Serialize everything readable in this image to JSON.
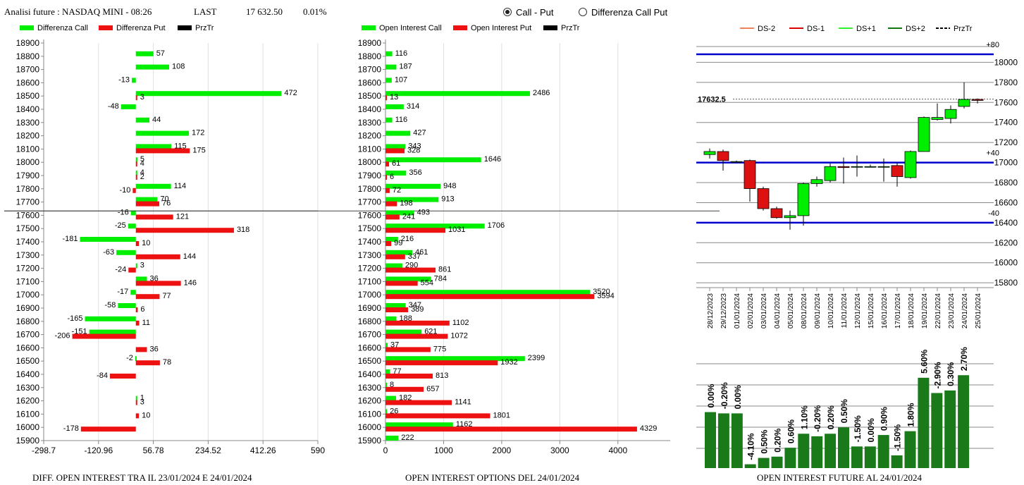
{
  "header": {
    "title": "Analisi future : NASDAQ MINI - 08:26",
    "last_label": "LAST",
    "last_value": "17 632.50",
    "change": "0.01%"
  },
  "mode_options": [
    {
      "label": "Call - Put",
      "selected": true
    },
    {
      "label": "Differenza Call Put",
      "selected": false
    }
  ],
  "colors": {
    "green": "#00ee00",
    "red": "#ee1111",
    "dark_green": "#1a7a1a",
    "blue": "#0000cc"
  },
  "chart_data": [
    {
      "type": "bar",
      "orientation": "horizontal",
      "title": "DIFF. OPEN INTEREST TRA IL 23/01/2024 E 24/01/2024",
      "legend": [
        "Differenza Call",
        "Differenza Put",
        "PrzTr"
      ],
      "categories": [
        "18900",
        "18800",
        "18700",
        "18600",
        "18500",
        "18400",
        "18300",
        "18200",
        "18100",
        "18000",
        "17900",
        "17800",
        "17700",
        "17600",
        "17500",
        "17400",
        "17300",
        "17200",
        "17100",
        "17000",
        "16900",
        "16800",
        "16700",
        "16600",
        "16500",
        "16400",
        "16300",
        "16200",
        "16100",
        "16000",
        "15900"
      ],
      "series": [
        {
          "name": "Differenza Call",
          "values": [
            null,
            57,
            108,
            -13,
            472,
            -48,
            44,
            172,
            115,
            5,
            4,
            114,
            70,
            -16,
            -25,
            -181,
            -63,
            3,
            36,
            -17,
            -58,
            -165,
            -151,
            null,
            -2,
            null,
            null,
            1,
            null,
            null,
            null
          ]
        },
        {
          "name": "Differenza Put",
          "values": [
            null,
            null,
            null,
            null,
            3,
            null,
            null,
            null,
            175,
            4,
            2,
            -10,
            76,
            121,
            318,
            10,
            144,
            -24,
            146,
            77,
            6,
            11,
            -206,
            36,
            78,
            -84,
            null,
            3,
            10,
            -178,
            null
          ]
        }
      ],
      "x_ticks": [
        "-298.7",
        "-120.96",
        "56.78",
        "234.52",
        "412.26",
        "590"
      ],
      "xlim": [
        -298.7,
        590
      ],
      "price_line": 17632.5
    },
    {
      "type": "bar",
      "orientation": "horizontal",
      "title": "OPEN INTEREST OPTIONS DEL 24/01/2024",
      "legend": [
        "Open Interest Call",
        "Open Interest Put",
        "PrzTr"
      ],
      "categories": [
        "18900",
        "18800",
        "18700",
        "18600",
        "18500",
        "18400",
        "18300",
        "18200",
        "18100",
        "18000",
        "17900",
        "17800",
        "17700",
        "17600",
        "17500",
        "17400",
        "17300",
        "17200",
        "17100",
        "17000",
        "16900",
        "16800",
        "16700",
        "16600",
        "16500",
        "16400",
        "16300",
        "16200",
        "16100",
        "16000",
        "15900"
      ],
      "series": [
        {
          "name": "Open Interest Call",
          "values": [
            null,
            116,
            187,
            107,
            2486,
            314,
            116,
            427,
            343,
            1646,
            356,
            948,
            913,
            493,
            1706,
            216,
            461,
            290,
            784,
            3520,
            347,
            188,
            621,
            37,
            2399,
            77,
            8,
            182,
            26,
            1162,
            222
          ]
        },
        {
          "name": "Open Interest Put",
          "values": [
            null,
            null,
            null,
            null,
            13,
            null,
            null,
            null,
            328,
            61,
            6,
            72,
            198,
            241,
            1031,
            99,
            337,
            861,
            554,
            3594,
            389,
            1102,
            1072,
            775,
            1932,
            813,
            657,
            1141,
            1801,
            4329,
            null
          ]
        }
      ],
      "x_ticks": [
        "0",
        "1000",
        "2000",
        "3000",
        "4000"
      ],
      "xlim": [
        0,
        4900
      ],
      "price_line": 17632.5
    },
    {
      "type": "candlestick",
      "legend": [
        "DS-2",
        "DS-1",
        "DS+1",
        "DS+2",
        "PrzTr"
      ],
      "legend_colors": [
        "#f08060",
        "#dd0000",
        "#33ee33",
        "#117711",
        "#000000"
      ],
      "dates": [
        "28/12/2023",
        "29/12/2023",
        "01/01/2024",
        "02/01/2024",
        "03/01/2024",
        "04/01/2024",
        "05/01/2024",
        "08/01/2024",
        "09/01/2024",
        "10/01/2024",
        "11/01/2024",
        "12/01/2024",
        "15/01/2024",
        "16/01/2024",
        "17/01/2024",
        "18/01/2024",
        "19/01/2024",
        "22/01/2024",
        "23/01/2024",
        "24/01/2024",
        "25/01/2024"
      ],
      "ohlc": [
        [
          17080,
          17140,
          17040,
          17110
        ],
        [
          17110,
          17130,
          16920,
          17020
        ],
        [
          17010,
          17020,
          17000,
          17010
        ],
        [
          17020,
          17030,
          16610,
          16740
        ],
        [
          16740,
          16760,
          16520,
          16540
        ],
        [
          16540,
          16560,
          16440,
          16450
        ],
        [
          16450,
          16520,
          16330,
          16470
        ],
        [
          16470,
          16800,
          16370,
          16790
        ],
        [
          16790,
          16860,
          16760,
          16830
        ],
        [
          16820,
          16990,
          16800,
          16960
        ],
        [
          16960,
          17050,
          16790,
          16950
        ],
        [
          16960,
          17070,
          16860,
          16960
        ],
        [
          16960,
          16980,
          16950,
          16960
        ],
        [
          16960,
          17040,
          16810,
          16960
        ],
        [
          16970,
          17000,
          16760,
          16860
        ],
        [
          16850,
          17120,
          16840,
          17110
        ],
        [
          17110,
          17460,
          17110,
          17450
        ],
        [
          17430,
          17590,
          17420,
          17450
        ],
        [
          17440,
          17570,
          17390,
          17530
        ],
        [
          17560,
          17800,
          17540,
          17630
        ],
        [
          17630,
          17640,
          17590,
          17620
        ]
      ],
      "y_ticks": [
        "15800",
        "16000",
        "16200",
        "16400",
        "16600",
        "16800",
        "17000",
        "17200",
        "17400",
        "17600",
        "17800",
        "18000"
      ],
      "ylim": [
        15780,
        18200
      ],
      "price_label": "17632.5",
      "bands": [
        {
          "label": "+80",
          "value": 18080
        },
        {
          "label": "+40",
          "value": 17000
        },
        {
          "label": "-40",
          "value": 16400
        }
      ]
    },
    {
      "type": "bar",
      "title": "OPEN INTEREST FUTURE AL 24/01/2024",
      "labels": [
        "0.00%",
        "-0.20%",
        "0.00%",
        "-4.10%",
        "0.50%",
        "0.20%",
        "0.60%",
        "1.10%",
        "-0.20%",
        "0.20%",
        "0.50%",
        "-1.50%",
        "0.00%",
        "0.90%",
        "-1.50%",
        "1.80%",
        "5.60%",
        "-2.90%",
        "0.30%",
        "2.70%"
      ],
      "values": [
        44,
        43,
        43,
        3,
        8,
        9,
        16,
        27,
        25,
        27,
        32,
        17,
        17,
        26,
        10,
        29,
        71,
        59,
        61,
        73
      ],
      "ylim": [
        0,
        82
      ]
    }
  ]
}
